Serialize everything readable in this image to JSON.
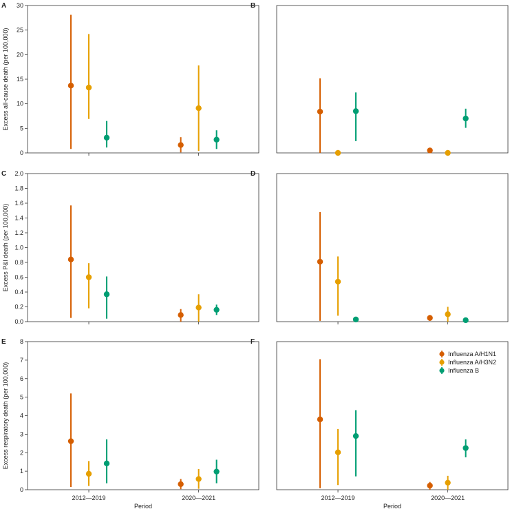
{
  "figure": {
    "xlabel": "Period",
    "categories": [
      "2012—2019",
      "2020—2021"
    ],
    "series": [
      {
        "name": "Influenza A/H1N1",
        "color": "#D55E00"
      },
      {
        "name": "Influenza A/H3N2",
        "color": "#E69F00"
      },
      {
        "name": "Influenza B",
        "color": "#009E73"
      }
    ]
  },
  "chart_data": [
    {
      "type": "scatter",
      "panel": "A",
      "ylabel": "Excess all-cause death (per 100,000)",
      "ylim": [
        0,
        30
      ],
      "yticks": [
        0,
        5,
        10,
        15,
        20,
        25,
        30
      ],
      "categories": [
        "2012—2019",
        "2020—2021"
      ],
      "series": [
        {
          "name": "Influenza A/H1N1",
          "values": [
            13.7,
            1.6
          ],
          "lower": [
            0.8,
            0.1
          ],
          "upper": [
            28.1,
            3.2
          ]
        },
        {
          "name": "Influenza A/H3N2",
          "values": [
            13.3,
            9.1
          ],
          "lower": [
            6.9,
            0.4
          ],
          "upper": [
            24.2,
            17.8
          ]
        },
        {
          "name": "Influenza B",
          "values": [
            3.1,
            2.7
          ],
          "lower": [
            1.1,
            0.8
          ],
          "upper": [
            6.5,
            4.6
          ]
        }
      ]
    },
    {
      "type": "scatter",
      "panel": "B",
      "ylabel": "",
      "ylim": [
        0,
        30
      ],
      "yticks": [],
      "categories": [
        "2012—2019",
        "2020—2021"
      ],
      "series": [
        {
          "name": "Influenza A/H1N1",
          "values": [
            8.4,
            0.5
          ],
          "lower": [
            0.0,
            0.2
          ],
          "upper": [
            15.2,
            0.9
          ]
        },
        {
          "name": "Influenza A/H3N2",
          "values": [
            0.0,
            0.0
          ],
          "lower": [
            0.0,
            0.0
          ],
          "upper": [
            0.2,
            0.2
          ]
        },
        {
          "name": "Influenza B",
          "values": [
            8.5,
            7.0
          ],
          "lower": [
            2.4,
            5.1
          ],
          "upper": [
            12.3,
            9.0
          ]
        }
      ]
    },
    {
      "type": "scatter",
      "panel": "C",
      "ylabel": "Excess P&I death (per 100,000)",
      "ylim": [
        0,
        2.0
      ],
      "yticks": [
        "0.0",
        "0.2",
        "0.4",
        "0.6",
        "0.8",
        "1.0",
        "1.2",
        "1.4",
        "1.6",
        "1.8",
        "2.0"
      ],
      "categories": [
        "2012—2019",
        "2020—2021"
      ],
      "series": [
        {
          "name": "Influenza A/H1N1",
          "values": [
            0.84,
            0.09
          ],
          "lower": [
            0.05,
            0.0
          ],
          "upper": [
            1.57,
            0.17
          ]
        },
        {
          "name": "Influenza A/H3N2",
          "values": [
            0.6,
            0.19
          ],
          "lower": [
            0.18,
            0.0
          ],
          "upper": [
            0.79,
            0.37
          ]
        },
        {
          "name": "Influenza B",
          "values": [
            0.37,
            0.16
          ],
          "lower": [
            0.04,
            0.09
          ],
          "upper": [
            0.61,
            0.23
          ]
        }
      ]
    },
    {
      "type": "scatter",
      "panel": "D",
      "ylabel": "",
      "ylim": [
        0,
        2.0
      ],
      "yticks": [],
      "categories": [
        "2012—2019",
        "2020—2021"
      ],
      "series": [
        {
          "name": "Influenza A/H1N1",
          "values": [
            0.81,
            0.05
          ],
          "lower": [
            0.01,
            0.01
          ],
          "upper": [
            1.48,
            0.09
          ]
        },
        {
          "name": "Influenza A/H3N2",
          "values": [
            0.54,
            0.1
          ],
          "lower": [
            0.08,
            0.0
          ],
          "upper": [
            0.88,
            0.2
          ]
        },
        {
          "name": "Influenza B",
          "values": [
            0.03,
            0.02
          ],
          "lower": [
            0.0,
            0.0
          ],
          "upper": [
            0.04,
            0.03
          ]
        }
      ]
    },
    {
      "type": "scatter",
      "panel": "E",
      "ylabel": "Excess respiratory death (per 100,000)",
      "ylim": [
        0,
        8
      ],
      "yticks": [
        0,
        1,
        2,
        3,
        4,
        5,
        6,
        7,
        8
      ],
      "categories": [
        "2012—2019",
        "2020—2021"
      ],
      "series": [
        {
          "name": "Influenza A/H1N1",
          "values": [
            2.62,
            0.3
          ],
          "lower": [
            0.15,
            0.03
          ],
          "upper": [
            5.2,
            0.58
          ]
        },
        {
          "name": "Influenza A/H3N2",
          "values": [
            0.86,
            0.58
          ],
          "lower": [
            0.2,
            0.05
          ],
          "upper": [
            1.55,
            1.12
          ]
        },
        {
          "name": "Influenza B",
          "values": [
            1.42,
            0.98
          ],
          "lower": [
            0.35,
            0.35
          ],
          "upper": [
            2.72,
            1.62
          ]
        }
      ]
    },
    {
      "type": "scatter",
      "panel": "F",
      "ylabel": "",
      "ylim": [
        0,
        8
      ],
      "yticks": [],
      "categories": [
        "2012—2019",
        "2020—2021"
      ],
      "series": [
        {
          "name": "Influenza A/H1N1",
          "values": [
            3.8,
            0.22
          ],
          "lower": [
            0.08,
            0.0
          ],
          "upper": [
            7.05,
            0.42
          ]
        },
        {
          "name": "Influenza A/H3N2",
          "values": [
            2.02,
            0.38
          ],
          "lower": [
            0.25,
            0.0
          ],
          "upper": [
            3.28,
            0.75
          ]
        },
        {
          "name": "Influenza B",
          "values": [
            2.9,
            2.25
          ],
          "lower": [
            0.72,
            1.75
          ],
          "upper": [
            4.3,
            2.72
          ]
        }
      ],
      "legend": "top-right"
    }
  ]
}
